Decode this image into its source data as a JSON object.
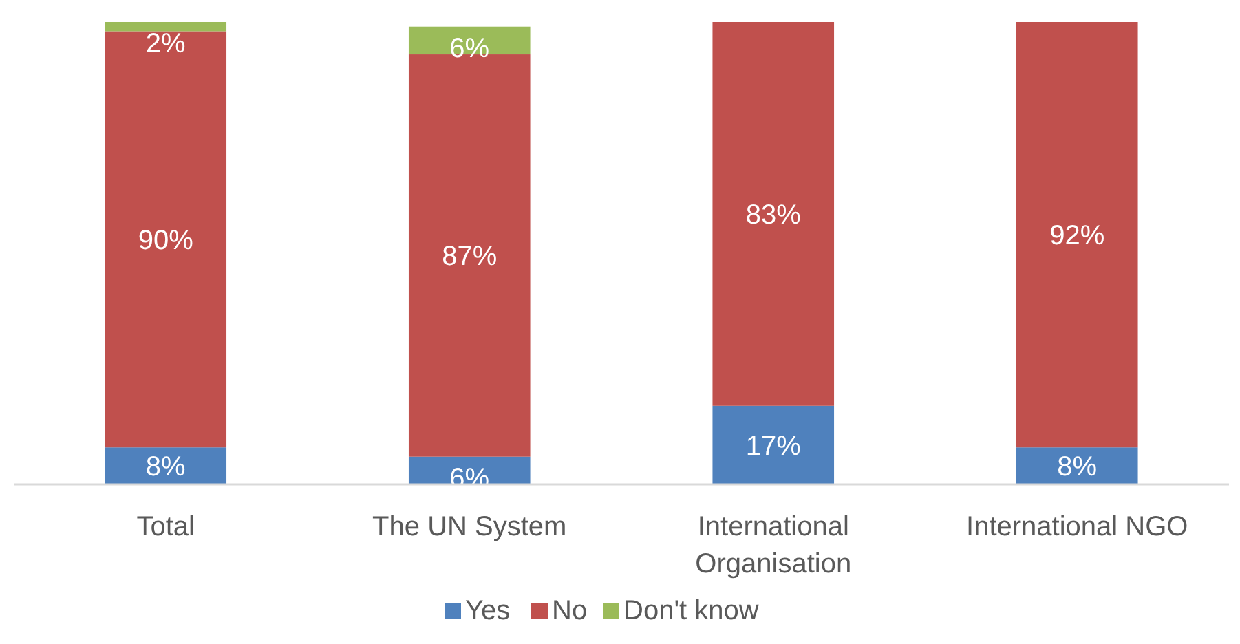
{
  "chart_data": {
    "type": "bar",
    "stacked": true,
    "categories": [
      "Total",
      "The UN System",
      "International Organisation",
      "International NGO"
    ],
    "series": [
      {
        "name": "Yes",
        "color": "#4f81bd",
        "values": [
          8,
          6,
          17,
          8
        ],
        "value_labels": [
          "8%",
          "6%",
          "17%",
          "8%"
        ]
      },
      {
        "name": "No",
        "color": "#c0504d",
        "values": [
          90,
          87,
          83,
          92
        ],
        "value_labels": [
          "90%",
          "87%",
          "83%",
          "92%"
        ]
      },
      {
        "name": "Don't know",
        "color": "#9bbb59",
        "values": [
          2,
          6,
          null,
          null
        ],
        "value_labels": [
          "2%",
          "6%",
          null,
          null
        ]
      }
    ],
    "legend": "bottom"
  }
}
